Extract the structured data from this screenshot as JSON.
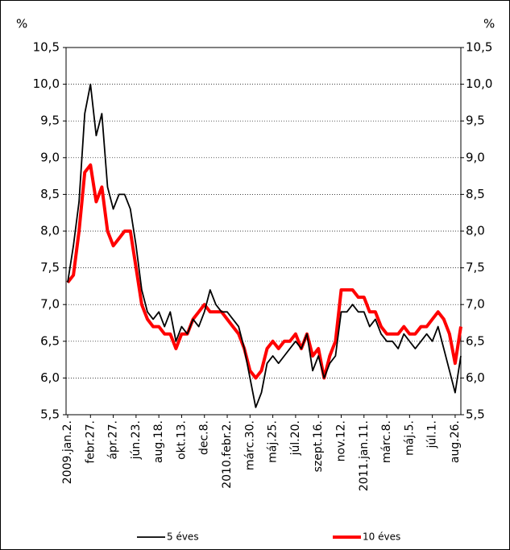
{
  "chart_data": {
    "type": "line",
    "y_label": "%",
    "y2_label": "%",
    "categories": [
      "2009.jan.2.",
      null,
      null,
      null,
      "febr.27.",
      null,
      null,
      null,
      "ápr.27.",
      null,
      null,
      null,
      "jún.23.",
      null,
      null,
      null,
      "aug.18.",
      null,
      null,
      null,
      "okt.13.",
      null,
      null,
      null,
      "dec.8.",
      null,
      null,
      null,
      "2010.febr.2.",
      null,
      null,
      null,
      "márc.30.",
      null,
      null,
      null,
      "máj.25.",
      null,
      null,
      null,
      "júl.20.",
      null,
      null,
      null,
      "szept.16.",
      null,
      null,
      null,
      "nov.12.",
      null,
      null,
      null,
      "2011.jan.11.",
      null,
      null,
      null,
      "márc.8.",
      null,
      null,
      null,
      "máj.5.",
      null,
      null,
      null,
      "júl.1.",
      null,
      null,
      null,
      "aug.26.",
      null
    ],
    "series": [
      {
        "name": "5 éves",
        "color": "#000000",
        "values": [
          7.3,
          7.8,
          8.4,
          9.6,
          10.0,
          9.3,
          9.6,
          8.6,
          8.3,
          8.5,
          8.5,
          8.3,
          7.8,
          7.2,
          6.9,
          6.8,
          6.9,
          6.7,
          6.9,
          6.5,
          6.7,
          6.6,
          6.8,
          6.7,
          6.9,
          7.2,
          7.0,
          6.9,
          6.9,
          6.8,
          6.7,
          6.4,
          6.0,
          5.6,
          5.8,
          6.2,
          6.3,
          6.2,
          6.3,
          6.4,
          6.5,
          6.4,
          6.6,
          6.1,
          6.3,
          6.0,
          6.2,
          6.3,
          6.9,
          6.9,
          7.0,
          6.9,
          6.9,
          6.7,
          6.8,
          6.6,
          6.5,
          6.5,
          6.4,
          6.6,
          6.5,
          6.4,
          6.5,
          6.6,
          6.5,
          6.7,
          6.4,
          6.1,
          5.8,
          6.3
        ]
      },
      {
        "name": "10 éves",
        "color": "#ff0000",
        "values": [
          7.3,
          7.4,
          8.0,
          8.8,
          8.9,
          8.4,
          8.6,
          8.0,
          7.8,
          7.9,
          8.0,
          8.0,
          7.5,
          7.0,
          6.8,
          6.7,
          6.7,
          6.6,
          6.6,
          6.4,
          6.6,
          6.6,
          6.8,
          6.9,
          7.0,
          6.9,
          6.9,
          6.9,
          6.8,
          6.7,
          6.6,
          6.4,
          6.1,
          6.0,
          6.1,
          6.4,
          6.5,
          6.4,
          6.5,
          6.5,
          6.6,
          6.4,
          6.6,
          6.3,
          6.4,
          6.0,
          6.3,
          6.5,
          7.2,
          7.2,
          7.2,
          7.1,
          7.1,
          6.9,
          6.9,
          6.7,
          6.6,
          6.6,
          6.6,
          6.7,
          6.6,
          6.6,
          6.7,
          6.7,
          6.8,
          6.9,
          6.8,
          6.6,
          6.2,
          6.7
        ]
      }
    ],
    "ylim": [
      5.5,
      10.5
    ],
    "yticks": [
      {
        "value": 5.5,
        "label": "5,5"
      },
      {
        "value": 6.0,
        "label": "6,0"
      },
      {
        "value": 6.5,
        "label": "6,5"
      },
      {
        "value": 7.0,
        "label": "7,0"
      },
      {
        "value": 7.5,
        "label": "7,5"
      },
      {
        "value": 8.0,
        "label": "8,0"
      },
      {
        "value": 8.5,
        "label": "8,5"
      },
      {
        "value": 9.0,
        "label": "9,0"
      },
      {
        "value": 9.5,
        "label": "9,5"
      },
      {
        "value": 10.0,
        "label": "10,0"
      },
      {
        "value": 10.5,
        "label": "10,5"
      }
    ],
    "y2lim": [
      5.5,
      10.5
    ],
    "y2ticks": [
      {
        "value": 5.5,
        "label": "5,5"
      },
      {
        "value": 6.0,
        "label": "6,0"
      },
      {
        "value": 6.5,
        "label": "6,5"
      },
      {
        "value": 7.0,
        "label": "7,0"
      },
      {
        "value": 7.5,
        "label": "7,5"
      },
      {
        "value": 8.0,
        "label": "8,0"
      },
      {
        "value": 8.5,
        "label": "8,5"
      },
      {
        "value": 9.0,
        "label": "9,0"
      },
      {
        "value": 9.5,
        "label": "9,5"
      },
      {
        "value": 10.0,
        "label": "10,0"
      },
      {
        "value": 10.5,
        "label": "10,5"
      }
    ],
    "grid": true
  }
}
